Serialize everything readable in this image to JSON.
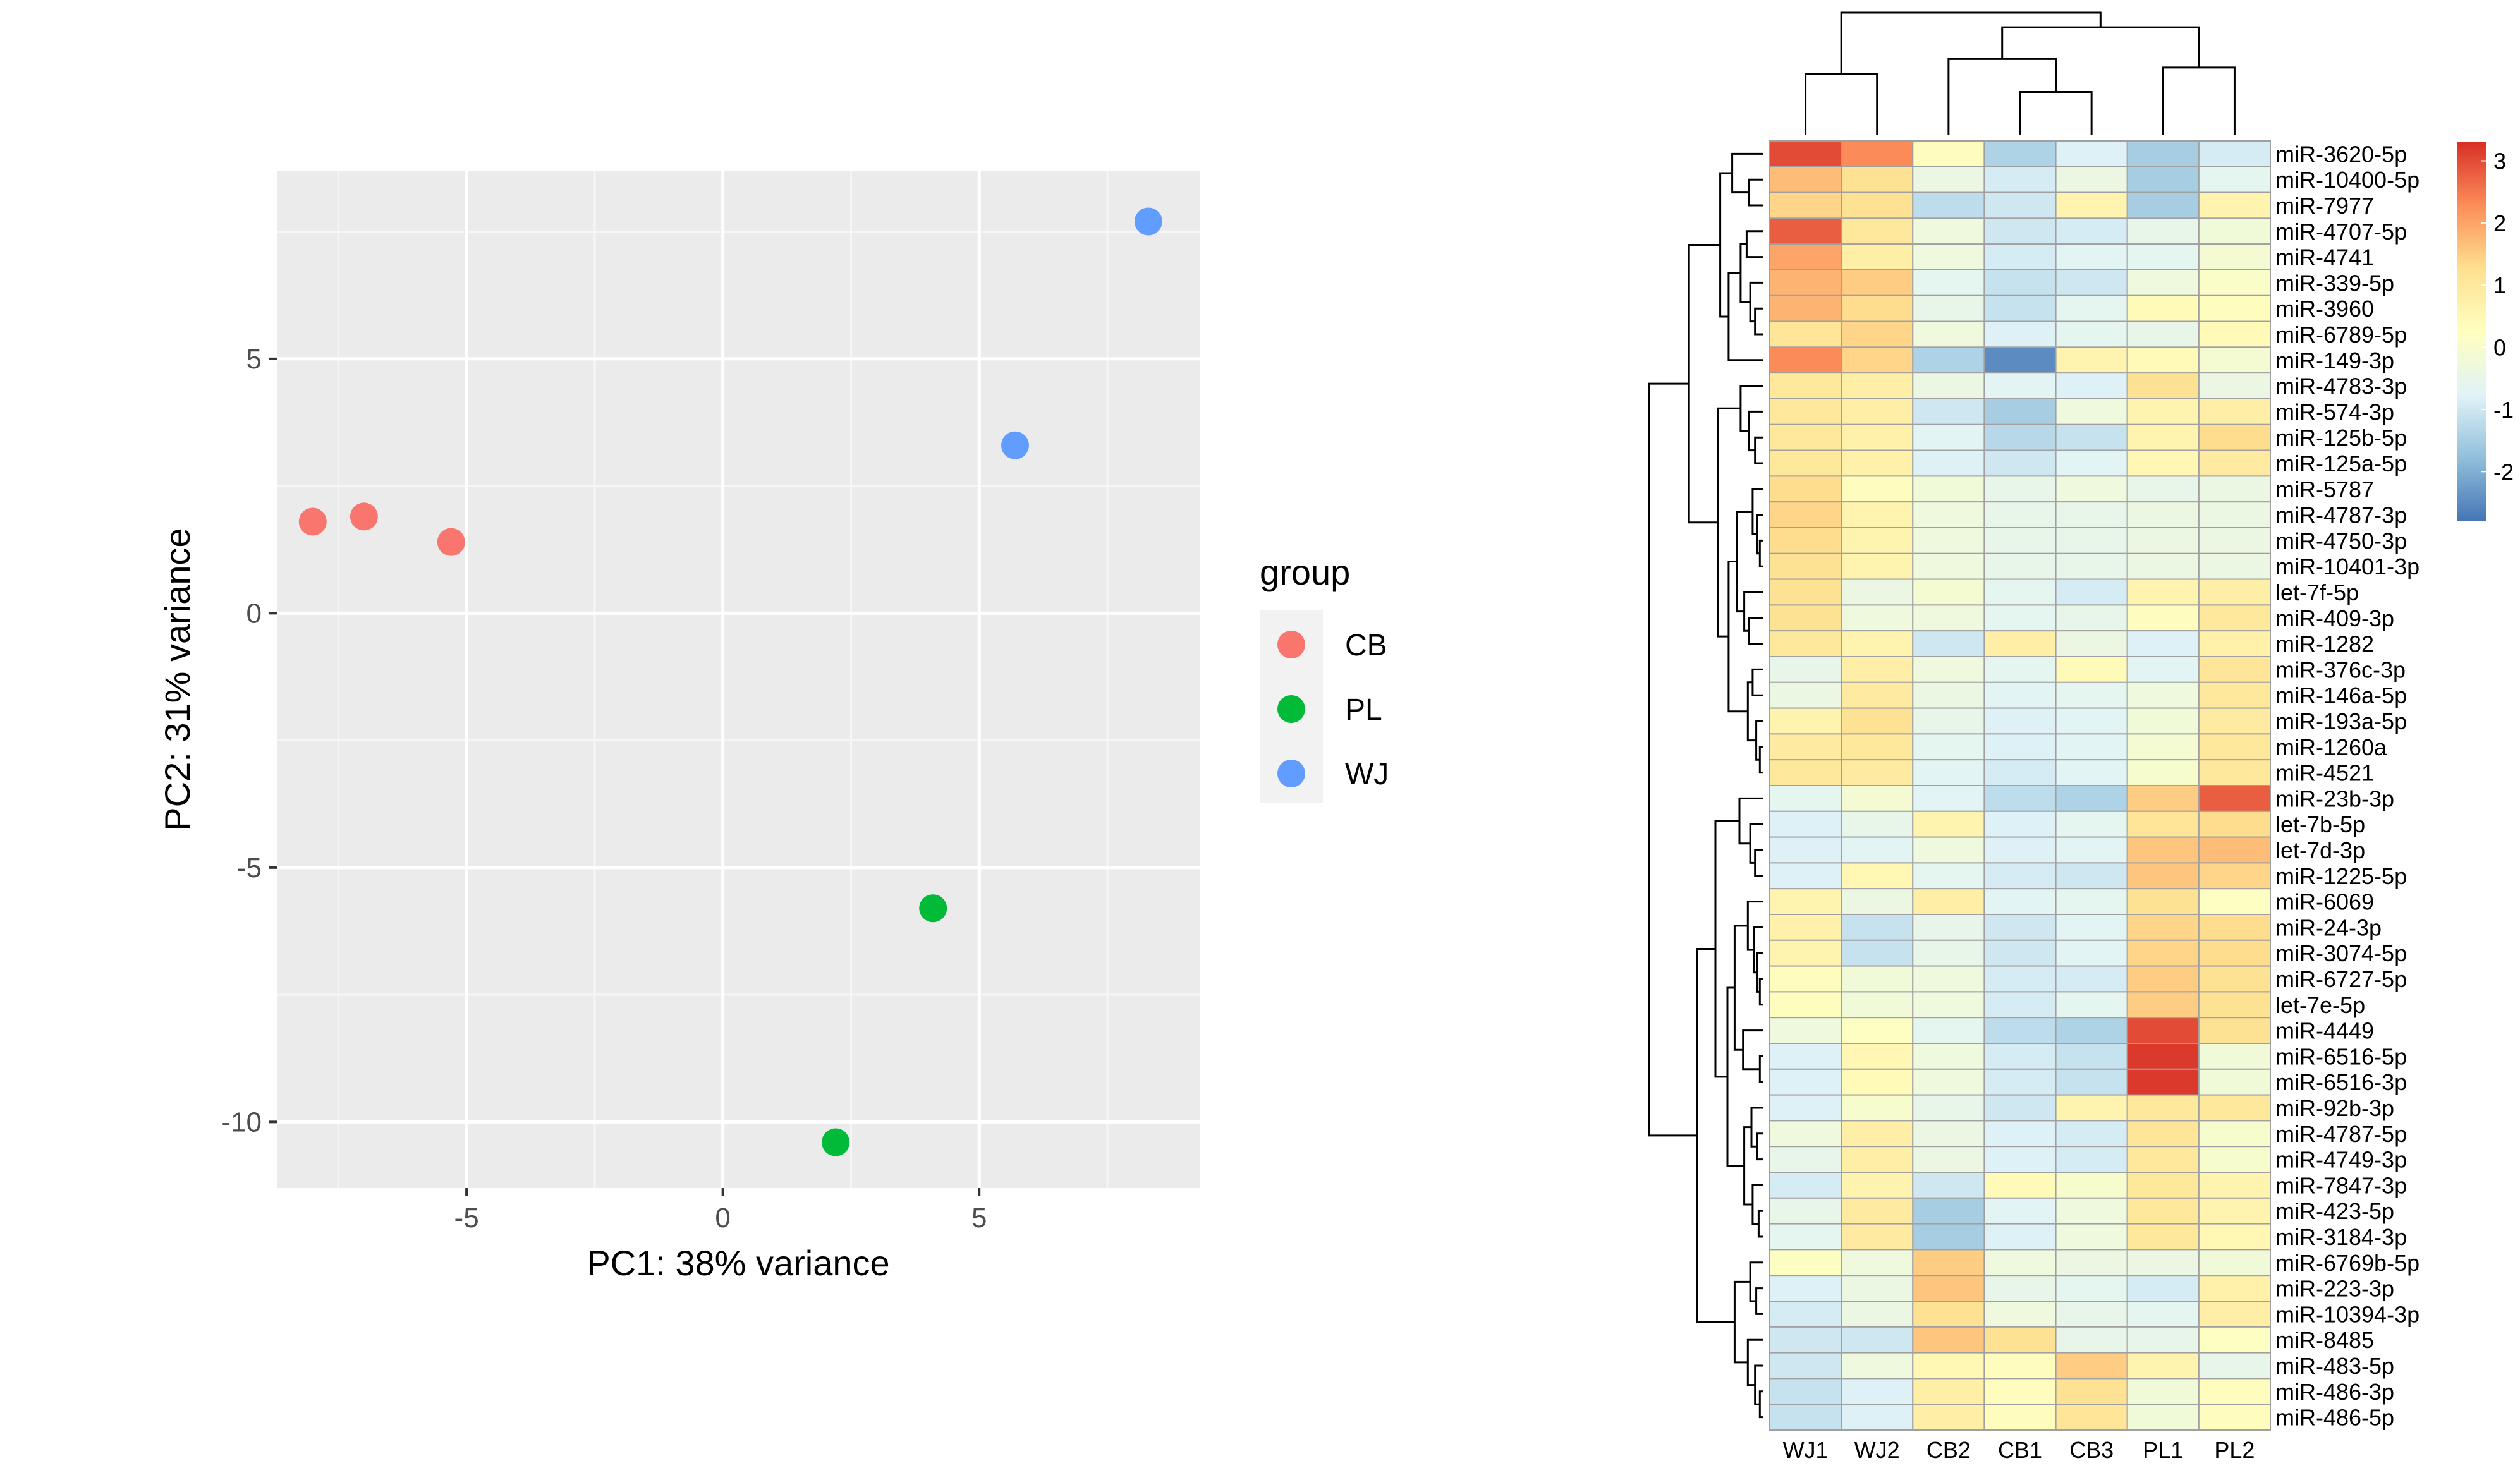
{
  "chart_data": [
    {
      "type": "scatter",
      "xlabel": "PC1: 38% variance",
      "ylabel": "PC2: 31% variance",
      "xlim": [
        -8.7,
        9.3
      ],
      "ylim": [
        -11.3,
        8.7
      ],
      "x_ticks": [
        -5,
        0,
        5
      ],
      "y_ticks": [
        -10,
        -5,
        0,
        5
      ],
      "x_tick_labels": [
        "-5",
        "0",
        "5"
      ],
      "y_tick_labels": [
        "-10",
        "-5",
        "0",
        "5"
      ],
      "grid": true,
      "legend": {
        "title": "group",
        "placement": "right",
        "entries": [
          {
            "label": "CB",
            "color": "#F8766D"
          },
          {
            "label": "PL",
            "color": "#00BA38"
          },
          {
            "label": "WJ",
            "color": "#619CFF"
          }
        ]
      },
      "points": [
        {
          "group": "CB",
          "x": -8.0,
          "y": 1.8
        },
        {
          "group": "CB",
          "x": -7.0,
          "y": 1.9
        },
        {
          "group": "CB",
          "x": -5.3,
          "y": 1.4
        },
        {
          "group": "PL",
          "x": 4.1,
          "y": -5.8
        },
        {
          "group": "PL",
          "x": 2.2,
          "y": -10.4
        },
        {
          "group": "WJ",
          "x": 5.7,
          "y": 3.3
        },
        {
          "group": "WJ",
          "x": 8.3,
          "y": 7.7
        }
      ]
    },
    {
      "type": "heatmap",
      "columns": [
        "WJ1",
        "WJ2",
        "CB2",
        "CB1",
        "CB3",
        "PL1",
        "PL2"
      ],
      "rows": [
        "miR-3620-5p",
        "miR-10400-5p",
        "miR-7977",
        "miR-4707-5p",
        "miR-4741",
        "miR-339-5p",
        "miR-3960",
        "miR-6789-5p",
        "miR-149-3p",
        "miR-4783-3p",
        "miR-574-3p",
        "miR-125b-5p",
        "miR-125a-5p",
        "miR-5787",
        "miR-4787-3p",
        "miR-4750-3p",
        "miR-10401-3p",
        "let-7f-5p",
        "miR-409-3p",
        "miR-1282",
        "miR-376c-3p",
        "miR-146a-5p",
        "miR-193a-5p",
        "miR-1260a",
        "miR-4521",
        "miR-23b-3p",
        "let-7b-5p",
        "let-7d-3p",
        "miR-1225-5p",
        "miR-6069",
        "miR-24-3p",
        "miR-3074-5p",
        "miR-6727-5p",
        "let-7e-5p",
        "miR-4449",
        "miR-6516-5p",
        "miR-6516-3p",
        "miR-92b-3p",
        "miR-4787-5p",
        "miR-4749-3p",
        "miR-7847-3p",
        "miR-423-5p",
        "miR-3184-3p",
        "miR-6769b-5p",
        "miR-223-3p",
        "miR-10394-3p",
        "miR-8485",
        "miR-483-5p",
        "miR-486-3p",
        "miR-486-5p"
      ],
      "values": [
        [
          3.0,
          2.3,
          0.3,
          -1.4,
          -0.8,
          -1.5,
          -0.9
        ],
        [
          1.7,
          1.2,
          -0.4,
          -0.9,
          -0.4,
          -1.5,
          -0.6
        ],
        [
          1.4,
          1.2,
          -1.2,
          -1.0,
          0.6,
          -1.5,
          0.6
        ],
        [
          2.8,
          1.0,
          -0.3,
          -1.0,
          -0.9,
          -0.5,
          -0.2
        ],
        [
          2.0,
          0.8,
          -0.3,
          -0.9,
          -0.7,
          -0.6,
          -0.1
        ],
        [
          1.8,
          1.5,
          -0.6,
          -1.1,
          -1.0,
          -0.3,
          0.1
        ],
        [
          1.8,
          1.3,
          -0.5,
          -1.1,
          -0.6,
          0.4,
          0.3
        ],
        [
          1.1,
          1.4,
          -0.3,
          -0.8,
          -0.6,
          -0.5,
          0.4
        ],
        [
          2.3,
          1.4,
          -1.4,
          -2.5,
          0.6,
          0.4,
          -0.1
        ],
        [
          1.0,
          0.8,
          -0.4,
          -0.7,
          -0.8,
          1.2,
          -0.4
        ],
        [
          1.0,
          0.8,
          -1.0,
          -1.5,
          -0.3,
          0.6,
          0.8
        ],
        [
          1.0,
          0.7,
          -0.7,
          -1.3,
          -1.1,
          0.6,
          1.3
        ],
        [
          1.0,
          0.7,
          -0.8,
          -1.0,
          -0.7,
          0.5,
          0.9
        ],
        [
          1.3,
          0.3,
          -0.2,
          -0.5,
          -0.3,
          -0.5,
          -0.4
        ],
        [
          1.4,
          0.6,
          -0.3,
          -0.5,
          -0.5,
          -0.4,
          -0.4
        ],
        [
          1.3,
          0.6,
          -0.3,
          -0.5,
          -0.5,
          -0.4,
          -0.4
        ],
        [
          1.2,
          0.6,
          -0.3,
          -0.5,
          -0.5,
          -0.4,
          -0.4
        ],
        [
          1.2,
          -0.4,
          -0.1,
          -0.6,
          -0.9,
          0.6,
          0.8
        ],
        [
          1.2,
          -0.3,
          -0.3,
          -0.6,
          -0.5,
          0.3,
          1.0
        ],
        [
          1.0,
          0.6,
          -1.0,
          0.8,
          -0.4,
          -0.8,
          0.7
        ],
        [
          -0.5,
          0.8,
          -0.3,
          -0.6,
          0.4,
          -0.7,
          1.1
        ],
        [
          -0.4,
          0.9,
          -0.4,
          -0.7,
          -0.6,
          -0.3,
          1.0
        ],
        [
          0.6,
          1.2,
          -0.5,
          -0.8,
          -0.7,
          -0.2,
          0.9
        ],
        [
          0.9,
          1.0,
          -0.6,
          -0.8,
          -0.7,
          -0.1,
          1.0
        ],
        [
          1.0,
          0.9,
          -0.7,
          -0.9,
          -0.7,
          0.0,
          1.0
        ],
        [
          -0.6,
          -0.1,
          -0.7,
          -1.2,
          -1.4,
          1.5,
          2.8
        ],
        [
          -0.8,
          -0.5,
          0.6,
          -0.8,
          -0.6,
          1.1,
          1.3
        ],
        [
          -0.8,
          -0.7,
          -0.3,
          -0.8,
          -0.7,
          1.6,
          1.7
        ],
        [
          -0.8,
          0.5,
          -0.6,
          -0.9,
          -1.0,
          1.6,
          1.4
        ],
        [
          0.6,
          -0.4,
          0.8,
          -0.7,
          -0.6,
          1.2,
          0.2
        ],
        [
          0.7,
          -1.1,
          -0.5,
          -1.0,
          -0.7,
          1.4,
          1.3
        ],
        [
          0.6,
          -1.1,
          -0.5,
          -1.0,
          -0.7,
          1.4,
          1.3
        ],
        [
          0.3,
          -0.2,
          -0.3,
          -0.9,
          -0.9,
          1.5,
          1.2
        ],
        [
          0.3,
          -0.2,
          -0.3,
          -0.9,
          -0.6,
          1.5,
          1.2
        ],
        [
          -0.3,
          0.2,
          -0.6,
          -1.2,
          -1.4,
          3.0,
          1.2
        ],
        [
          -0.8,
          0.5,
          -0.3,
          -0.9,
          -1.1,
          3.2,
          -0.2
        ],
        [
          -0.8,
          0.4,
          -0.3,
          -0.9,
          -1.1,
          3.2,
          -0.2
        ],
        [
          -0.8,
          0.0,
          -0.5,
          -1.0,
          0.6,
          1.0,
          1.0
        ],
        [
          -0.3,
          0.8,
          -0.4,
          -0.8,
          -0.9,
          1.1,
          0.0
        ],
        [
          -0.5,
          0.8,
          -0.4,
          -0.8,
          -0.9,
          1.0,
          0.0
        ],
        [
          -0.9,
          0.6,
          -1.0,
          0.4,
          0.0,
          1.0,
          0.6
        ],
        [
          -0.5,
          0.9,
          -1.5,
          -0.7,
          -0.3,
          1.0,
          0.6
        ],
        [
          -0.6,
          0.9,
          -1.5,
          -0.8,
          -0.3,
          1.0,
          0.5
        ],
        [
          0.2,
          -0.3,
          1.5,
          -0.3,
          -0.4,
          -0.4,
          -0.2
        ],
        [
          -0.8,
          -0.4,
          1.6,
          -0.5,
          -0.6,
          -0.9,
          0.7
        ],
        [
          -0.9,
          -0.4,
          1.2,
          -0.3,
          -0.5,
          -0.6,
          0.8
        ],
        [
          -1.0,
          -1.0,
          1.6,
          1.2,
          -0.5,
          -0.5,
          0.2
        ],
        [
          -1.0,
          -0.3,
          0.5,
          0.3,
          1.5,
          0.6,
          -0.5
        ],
        [
          -1.1,
          -0.8,
          0.8,
          0.3,
          1.2,
          -0.2,
          0.3
        ],
        [
          -1.1,
          -0.8,
          0.8,
          0.3,
          1.1,
          -0.2,
          0.3
        ]
      ],
      "color_scale": {
        "min": -2.8,
        "max": 3.3,
        "colors": [
          "#4575B4",
          "#91BFDB",
          "#E0F3F8",
          "#FFFFBF",
          "#FEE090",
          "#FC8D59",
          "#D73027"
        ],
        "ticks": [
          3,
          2,
          1,
          0,
          -1,
          -2
        ],
        "tick_labels": [
          "3",
          "2",
          "1",
          "0",
          "-1",
          "-2"
        ]
      },
      "legend": {
        "placement": "right"
      },
      "dendrograms": {
        "rows": true,
        "columns": true
      }
    }
  ]
}
